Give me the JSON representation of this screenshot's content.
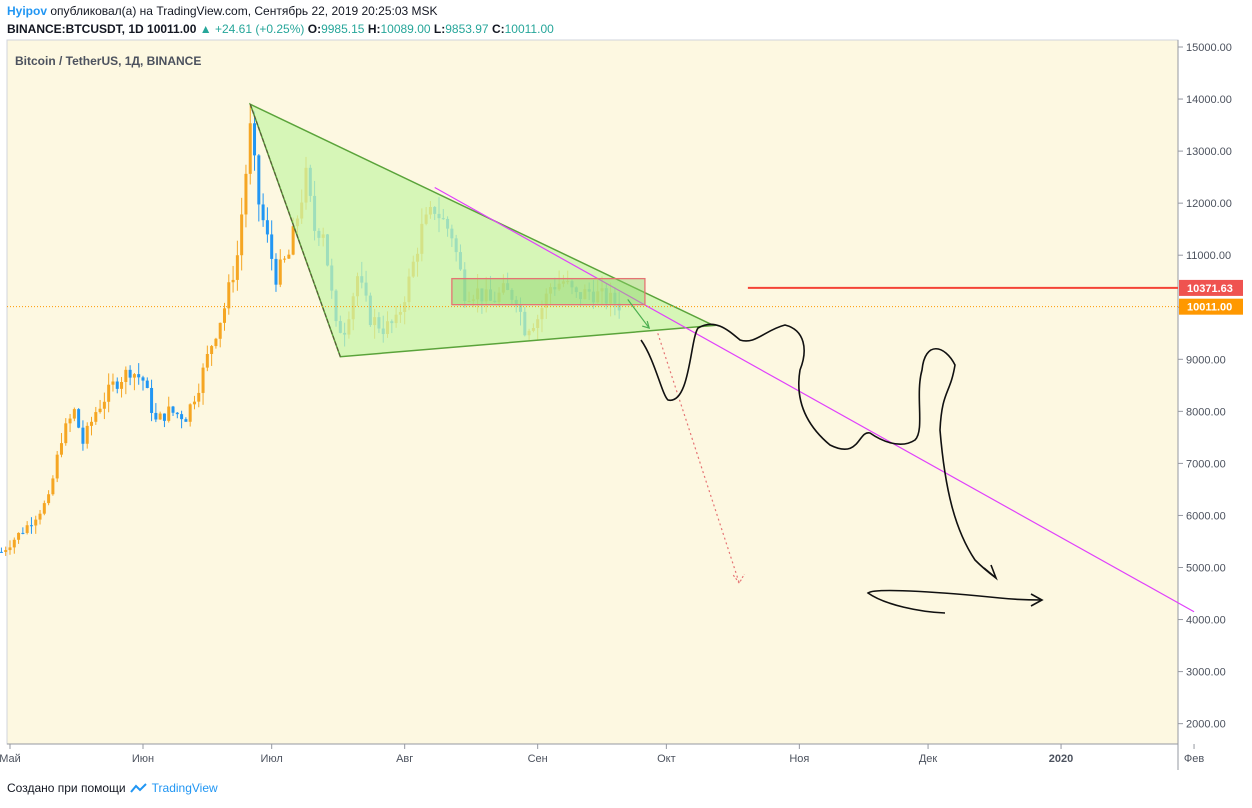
{
  "header": {
    "author": "Hyipov",
    "published_text": "опубликовал(а) на TradingView.com, Сентябрь 22, 2019 20:25:03 MSK",
    "symbol": "BINANCE:BTCUSDT, 1D",
    "last": "10011.00",
    "change_arrow": "▲",
    "change": "+24.61 (+0.25%)",
    "o_label": "O:",
    "o_value": "9985.15",
    "h_label": "H:",
    "h_value": "10089.00",
    "l_label": "L:",
    "l_value": "9853.97",
    "c_label": "C:",
    "c_value": "10011.00"
  },
  "chart_title": "Bitcoin / TetherUS, 1Д, BINANCE",
  "footer": {
    "created_with": "Создано при помощи",
    "brand": "TradingView"
  },
  "colors": {
    "plot_bg": "#fdf8e1",
    "up_candle": "#f5a623",
    "down_candle": "#2196f3",
    "triangle_fill": "#c8f5a8",
    "triangle_stroke": "#5aa33a",
    "magenta_line": "#e040fb",
    "red_line": "#f44336",
    "last_price_label": "#ff9800",
    "red_label": "#ef5350"
  },
  "chart_data": {
    "type": "candlestick",
    "ylim": [
      1500,
      15300
    ],
    "y_ticks": [
      "15000.00",
      "14000.00",
      "13000.00",
      "12000.00",
      "11000.00",
      "10000.00",
      "9000.00",
      "8000.00",
      "7000.00",
      "6000.00",
      "5000.00",
      "4000.00",
      "3000.00",
      "2000.00"
    ],
    "y_tick_values": [
      15000,
      14000,
      13000,
      12000,
      11000,
      10000,
      9000,
      8000,
      7000,
      6000,
      5000,
      4000,
      3000,
      2000
    ],
    "x_labels": [
      "Май",
      "Июн",
      "Июл",
      "Авг",
      "Сен",
      "Окт",
      "Ноя",
      "Дек",
      "2020",
      "Фев"
    ],
    "x_label_dates": [
      "2019-05-01",
      "2019-06-01",
      "2019-07-01",
      "2019-08-01",
      "2019-09-01",
      "2019-10-01",
      "2019-11-01",
      "2019-12-01",
      "2020-01-01",
      "2020-02-01"
    ],
    "price_labels": [
      {
        "value": 10371.63,
        "text": "10371.63",
        "kind": "horizontal-line"
      },
      {
        "value": 10011.0,
        "text": "10011.00",
        "kind": "last-price"
      }
    ],
    "candle_path": [
      [
        "2019-04-29",
        5300
      ],
      [
        "2019-05-05",
        5800
      ],
      [
        "2019-05-10",
        6300
      ],
      [
        "2019-05-13",
        7500
      ],
      [
        "2019-05-16",
        8000
      ],
      [
        "2019-05-18",
        7400
      ],
      [
        "2019-05-21",
        8000
      ],
      [
        "2019-05-25",
        8500
      ],
      [
        "2019-05-29",
        8800
      ],
      [
        "2019-06-01",
        8600
      ],
      [
        "2019-06-04",
        7800
      ],
      [
        "2019-06-07",
        8000
      ],
      [
        "2019-06-11",
        7900
      ],
      [
        "2019-06-14",
        8500
      ],
      [
        "2019-06-17",
        9300
      ],
      [
        "2019-06-20",
        10000
      ],
      [
        "2019-06-23",
        11000
      ],
      [
        "2019-06-26",
        13400
      ],
      [
        "2019-06-28",
        12000
      ],
      [
        "2019-07-02",
        10600
      ],
      [
        "2019-07-05",
        11000
      ],
      [
        "2019-07-09",
        12500
      ],
      [
        "2019-07-11",
        11500
      ],
      [
        "2019-07-13",
        11500
      ],
      [
        "2019-07-16",
        9600
      ],
      [
        "2019-07-18",
        9600
      ],
      [
        "2019-07-21",
        10600
      ],
      [
        "2019-07-24",
        9800
      ],
      [
        "2019-07-27",
        9600
      ],
      [
        "2019-07-30",
        9700
      ],
      [
        "2019-08-02",
        10500
      ],
      [
        "2019-08-05",
        11500
      ],
      [
        "2019-08-08",
        11900
      ],
      [
        "2019-08-12",
        11400
      ],
      [
        "2019-08-15",
        10300
      ],
      [
        "2019-08-18",
        10300
      ],
      [
        "2019-08-21",
        10100
      ],
      [
        "2019-08-24",
        10300
      ],
      [
        "2019-08-27",
        10200
      ],
      [
        "2019-08-29",
        9600
      ],
      [
        "2019-09-01",
        9800
      ],
      [
        "2019-09-04",
        10400
      ],
      [
        "2019-09-07",
        10500
      ],
      [
        "2019-09-10",
        10200
      ],
      [
        "2019-09-13",
        10300
      ],
      [
        "2019-09-16",
        10200
      ],
      [
        "2019-09-19",
        10100
      ],
      [
        "2019-09-21",
        10011
      ]
    ],
    "drawings": {
      "triangle": [
        [
          "2019-06-26",
          13900
        ],
        [
          "2019-07-17",
          9050
        ],
        [
          "2019-10-12",
          9650
        ]
      ],
      "magenta_trendline": [
        [
          "2019-08-08",
          12300
        ],
        [
          "2020-02-01",
          4150
        ]
      ],
      "red_horizontal_line": {
        "from": "2019-10-20",
        "value": 10371.63
      },
      "range_box": {
        "from": "2019-08-12",
        "to": "2019-09-26",
        "top": 10550,
        "bottom": 10050
      },
      "red_dotted_projection": [
        [
          "2019-09-29",
          9500
        ],
        [
          "2019-10-18",
          4700
        ]
      ]
    }
  }
}
